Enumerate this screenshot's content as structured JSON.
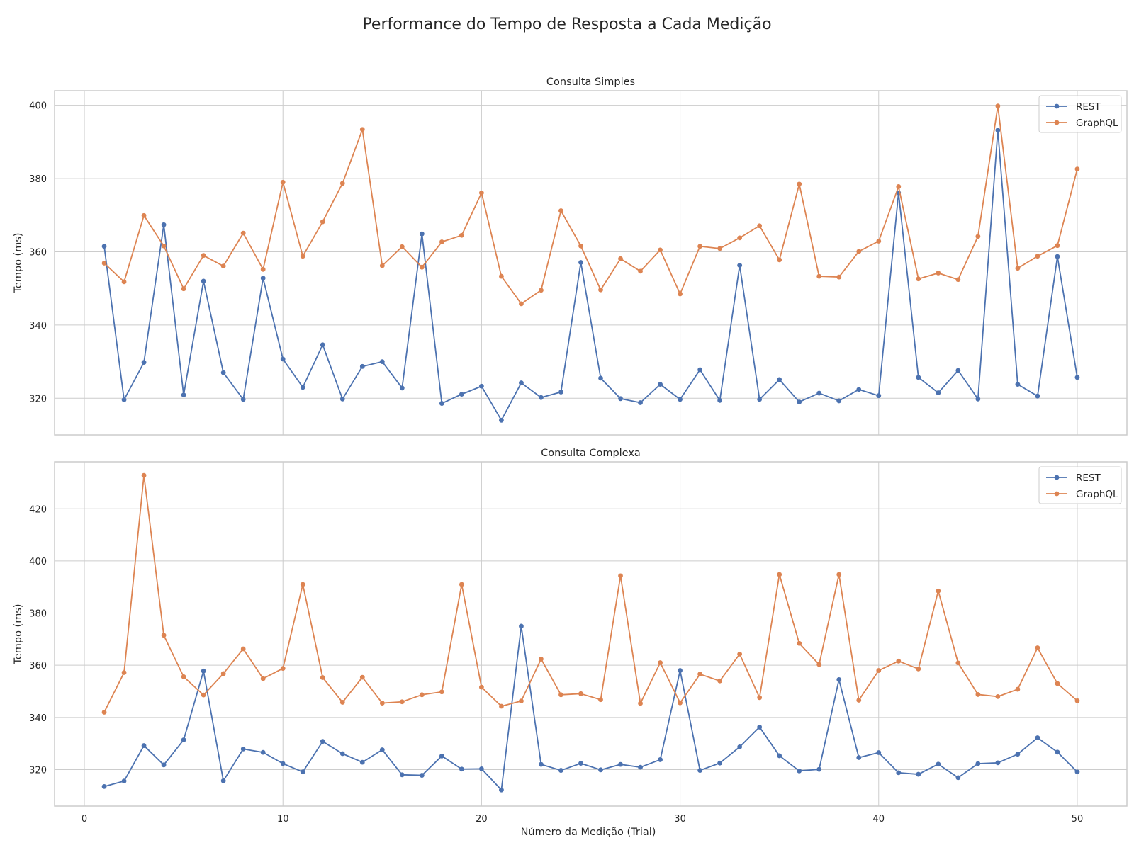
{
  "figure": {
    "title": "Performance do Tempo de Resposta a Cada Medição",
    "xlabel": "Número da Medição (Trial)"
  },
  "colors": {
    "rest": "#4c72b0",
    "graphql": "#dd8452",
    "grid": "#cccccc",
    "frame": "#cccccc"
  },
  "chart_data": [
    {
      "type": "line",
      "title": "Consulta Simples",
      "xlabel": "",
      "ylabel": "Tempo (ms)",
      "xlim": [
        -1.5,
        52.5
      ],
      "ylim": [
        310,
        404
      ],
      "xticks": [
        0,
        10,
        20,
        30,
        40,
        50
      ],
      "yticks": [
        320,
        340,
        360,
        380,
        400
      ],
      "grid": true,
      "legend": "top-right",
      "x": [
        1,
        2,
        3,
        4,
        5,
        6,
        7,
        8,
        9,
        10,
        11,
        12,
        13,
        14,
        15,
        16,
        17,
        18,
        19,
        20,
        21,
        22,
        23,
        24,
        25,
        26,
        27,
        28,
        29,
        30,
        31,
        32,
        33,
        34,
        35,
        36,
        37,
        38,
        39,
        40,
        41,
        42,
        43,
        44,
        45,
        46,
        47,
        48,
        49,
        50
      ],
      "series": [
        {
          "name": "REST",
          "color": "#4c72b0",
          "values": [
            361.5,
            319.6,
            329.8,
            367.4,
            320.9,
            352,
            327,
            319.7,
            352.8,
            330.7,
            323,
            334.6,
            319.8,
            328.7,
            330,
            322.8,
            364.9,
            318.6,
            321.1,
            323.3,
            314,
            324.2,
            320.2,
            321.7,
            357.1,
            325.5,
            319.9,
            318.8,
            323.8,
            319.7,
            327.8,
            319.4,
            356.3,
            319.7,
            325.1,
            319,
            321.4,
            319.3,
            322.4,
            320.7,
            376.1,
            325.7,
            321.5,
            327.6,
            319.8,
            393.2,
            323.8,
            320.6,
            358.7,
            325.7
          ]
        },
        {
          "name": "GraphQL",
          "color": "#dd8452",
          "values": [
            356.9,
            351.8,
            369.9,
            361.6,
            349.9,
            359,
            356.1,
            365.1,
            355.2,
            379,
            358.8,
            368.2,
            378.7,
            393.4,
            356.2,
            361.4,
            355.8,
            362.7,
            364.5,
            376.1,
            353.3,
            345.8,
            349.5,
            371.2,
            361.6,
            349.6,
            358.1,
            354.7,
            360.5,
            348.5,
            361.5,
            360.9,
            363.8,
            367.1,
            357.8,
            378.5,
            353.3,
            353.1,
            360.1,
            362.9,
            377.8,
            352.6,
            354.2,
            352.4,
            364.2,
            399.8,
            355.5,
            358.8,
            361.7,
            382.6
          ]
        }
      ]
    },
    {
      "type": "line",
      "title": "Consulta Complexa",
      "xlabel": "Número da Medição (Trial)",
      "ylabel": "Tempo (ms)",
      "xlim": [
        -1.5,
        52.5
      ],
      "ylim": [
        306,
        438
      ],
      "xticks": [
        0,
        10,
        20,
        30,
        40,
        50
      ],
      "yticks": [
        320,
        340,
        360,
        380,
        400,
        420
      ],
      "grid": true,
      "legend": "top-right",
      "x": [
        1,
        2,
        3,
        4,
        5,
        6,
        7,
        8,
        9,
        10,
        11,
        12,
        13,
        14,
        15,
        16,
        17,
        18,
        19,
        20,
        21,
        22,
        23,
        24,
        25,
        26,
        27,
        28,
        29,
        30,
        31,
        32,
        33,
        34,
        35,
        36,
        37,
        38,
        39,
        40,
        41,
        42,
        43,
        44,
        45,
        46,
        47,
        48,
        49,
        50
      ],
      "series": [
        {
          "name": "REST",
          "color": "#4c72b0",
          "values": [
            313.5,
            315.6,
            329.2,
            321.8,
            331.4,
            357.8,
            315.7,
            327.9,
            326.6,
            322.3,
            319.1,
            330.8,
            326.1,
            322.8,
            327.6,
            318,
            317.8,
            325.2,
            320.2,
            320.3,
            312.2,
            375,
            322,
            319.7,
            322.4,
            319.9,
            322,
            320.9,
            323.8,
            358,
            319.7,
            322.5,
            328.7,
            336.3,
            325.3,
            319.5,
            320.1,
            354.5,
            324.6,
            326.5,
            318.8,
            318.2,
            322.1,
            316.9,
            322.3,
            322.6,
            325.9,
            332.2,
            326.7,
            319.1
          ]
        },
        {
          "name": "GraphQL",
          "color": "#dd8452",
          "values": [
            342,
            357.2,
            432.8,
            371.5,
            355.6,
            348.6,
            356.8,
            366.3,
            354.9,
            358.8,
            391,
            355.3,
            345.8,
            355.4,
            345.5,
            346,
            348.7,
            349.8,
            391,
            351.6,
            344.3,
            346.3,
            362.4,
            348.7,
            349.1,
            346.8,
            394.3,
            345.4,
            361,
            345.6,
            356.6,
            354,
            364.3,
            347.6,
            394.8,
            368.4,
            360.3,
            394.8,
            346.6,
            358,
            361.6,
            358.6,
            388.5,
            360.9,
            348.8,
            348,
            350.8,
            366.7,
            353,
            346.4
          ]
        }
      ]
    }
  ]
}
